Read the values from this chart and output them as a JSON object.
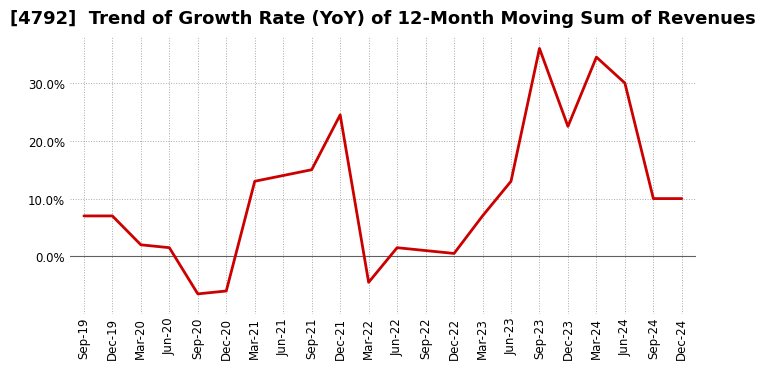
{
  "title": "[4792]  Trend of Growth Rate (YoY) of 12-Month Moving Sum of Revenues",
  "x_labels": [
    "Sep-19",
    "Dec-19",
    "Mar-20",
    "Jun-20",
    "Sep-20",
    "Dec-20",
    "Mar-21",
    "Jun-21",
    "Sep-21",
    "Dec-21",
    "Mar-22",
    "Jun-22",
    "Sep-22",
    "Dec-22",
    "Mar-23",
    "Jun-23",
    "Sep-23",
    "Dec-23",
    "Mar-24",
    "Jun-24",
    "Sep-24",
    "Dec-24"
  ],
  "x_values": [
    0,
    1,
    2,
    3,
    4,
    5,
    6,
    7,
    8,
    9,
    10,
    11,
    12,
    13,
    14,
    15,
    16,
    17,
    18,
    19,
    20,
    21
  ],
  "y_values": [
    7.0,
    7.0,
    2.0,
    1.5,
    -6.5,
    -6.0,
    13.0,
    14.0,
    15.0,
    24.5,
    -4.5,
    1.5,
    1.0,
    0.5,
    7.0,
    13.0,
    36.0,
    22.5,
    34.5,
    30.0,
    10.0,
    10.0
  ],
  "line_color": "#cc0000",
  "line_width": 2.0,
  "background_color": "#ffffff",
  "plot_background": "#ffffff",
  "grid_color": "#aaaaaa",
  "zero_line_color": "#606060",
  "ylim": [
    -10,
    38
  ],
  "yticks": [
    0,
    10,
    20,
    30
  ],
  "title_fontsize": 13,
  "tick_fontsize": 8.5
}
